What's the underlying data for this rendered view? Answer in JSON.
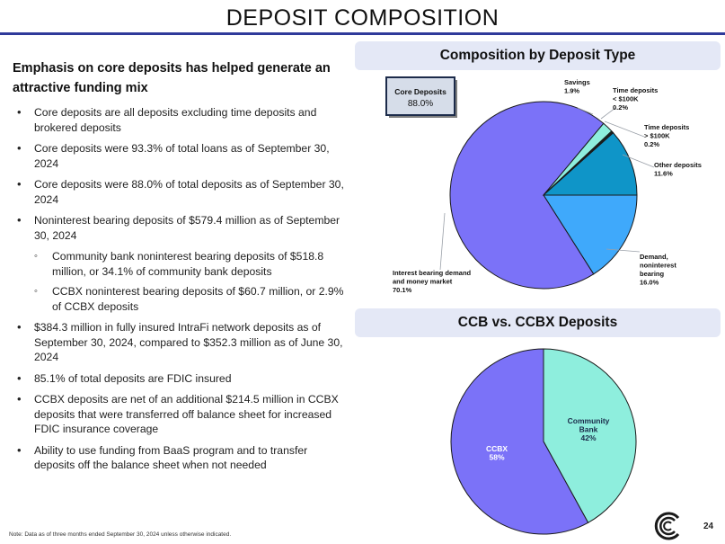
{
  "page": {
    "title": "DEPOSIT COMPOSITION",
    "page_number": "24",
    "note": "Note: Data as of three months ended September 30, 2024 unless otherwise indicated."
  },
  "left": {
    "headline": "Emphasis on core deposits has helped generate an attractive funding mix",
    "bullets": [
      "Core deposits are all deposits excluding time deposits and brokered deposits",
      "Core deposits were 93.3% of total loans as of September 30, 2024",
      "Core deposits were 88.0% of total deposits as of September 30, 2024",
      "Noninterest bearing deposits of $579.4 million as of September 30, 2024",
      "$384.3 million in fully insured IntraFi network deposits as of September 30, 2024, compared to $352.3 million as of June 30, 2024",
      "85.1% of total deposits are FDIC insured",
      "CCBX deposits are net of an additional $214.5 million in CCBX deposits that were transferred off balance sheet for increased FDIC insurance coverage",
      "Ability to use funding from BaaS program and to transfer deposits off the balance sheet when not needed"
    ],
    "sub_bullets": [
      "Community bank noninterest bearing deposits of $518.8 million, or 34.1% of community bank deposits",
      "CCBX noninterest bearing deposits of $60.7 million, or 2.9% of CCBX deposits"
    ]
  },
  "panels": {
    "deposit_type_title": "Composition by Deposit Type",
    "ccb_title": "CCB vs. CCBX Deposits",
    "core_box_label": "Core Deposits",
    "core_box_value": "88.0%"
  },
  "colors": {
    "title_rule": "#2f3a9a",
    "interest_bearing": "#7b72f8",
    "demand": "#3fa9fb",
    "other": "#0f95c8",
    "time_large": "#1e2a5a",
    "time_small": "#0e6b4f",
    "savings": "#8eeedd",
    "ccbx": "#7b72f8",
    "community": "#8eeedd"
  },
  "chart_data": [
    {
      "type": "pie",
      "title": "Composition by Deposit Type",
      "slices": [
        {
          "label": [
            "Demand,",
            "noninterest",
            "bearing"
          ],
          "value": 16.0,
          "value_label": "16.0%",
          "color": "#3fa9fb"
        },
        {
          "label": [
            "Interest bearing demand",
            "and money market"
          ],
          "value": 70.1,
          "value_label": "70.1%",
          "color": "#7b72f8"
        },
        {
          "label": [
            "Savings"
          ],
          "value": 1.9,
          "value_label": "1.9%",
          "color": "#8eeedd"
        },
        {
          "label": [
            "Time deposits",
            "< $100K"
          ],
          "value": 0.2,
          "value_label": "0.2%",
          "color": "#0e6b4f"
        },
        {
          "label": [
            "Time deposits",
            "> $100K"
          ],
          "value": 0.2,
          "value_label": "0.2%",
          "color": "#1e2a5a"
        },
        {
          "label": [
            "Other deposits"
          ],
          "value": 11.6,
          "value_label": "11.6%",
          "color": "#0f95c8"
        }
      ]
    },
    {
      "type": "pie",
      "title": "CCB vs. CCBX Deposits",
      "slices": [
        {
          "label": [
            "Community",
            "Bank"
          ],
          "value": 42,
          "value_label": "42%",
          "color": "#8eeedd"
        },
        {
          "label": [
            "CCBX"
          ],
          "value": 58,
          "value_label": "58%",
          "color": "#7b72f8"
        }
      ]
    }
  ]
}
